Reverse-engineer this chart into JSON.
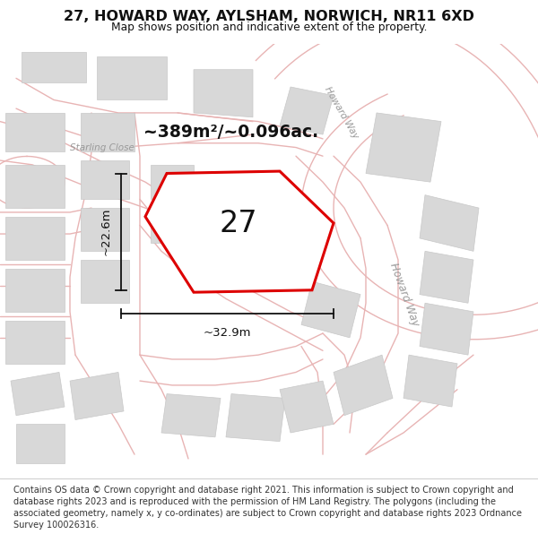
{
  "title": "27, HOWARD WAY, AYLSHAM, NORWICH, NR11 6XD",
  "subtitle": "Map shows position and indicative extent of the property.",
  "area_text": "~389m²/~0.096ac.",
  "label_27": "27",
  "dim_width": "~32.9m",
  "dim_height": "~22.6m",
  "footer": "Contains OS data © Crown copyright and database right 2021. This information is subject to Crown copyright and database rights 2023 and is reproduced with the permission of HM Land Registry. The polygons (including the associated geometry, namely x, y co-ordinates) are subject to Crown copyright and database rights 2023 Ordnance Survey 100026316.",
  "bg_color": "#ffffff",
  "map_bg": "#ffffff",
  "road_fill": "#f7f7f7",
  "road_color": "#e8b4b4",
  "block_color": "#d8d8d8",
  "block_edge": "#c8c8c8",
  "plot_color": "#ffffff",
  "plot_edge": "#dd0000",
  "plot_edge_width": 2.2,
  "text_color": "#111111",
  "road_label_color": "#999999",
  "dim_color": "#111111",
  "footer_color": "#333333",
  "figsize": [
    6.0,
    6.25
  ],
  "dpi": 100
}
